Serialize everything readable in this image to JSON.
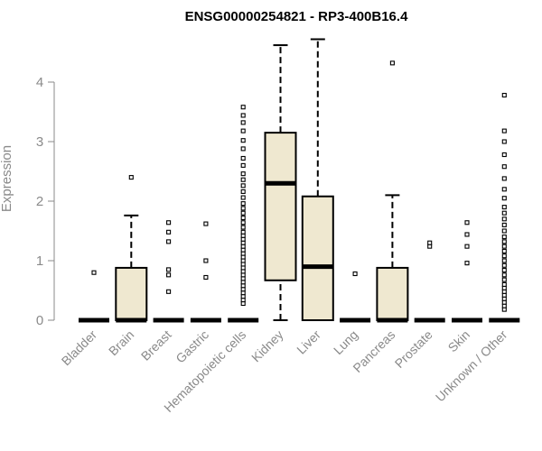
{
  "chart_data": {
    "type": "boxplot",
    "title": "ENSG00000254821 - RP3-400B16.4",
    "xlabel": "",
    "ylabel": "Expression",
    "ylim": [
      0,
      4.8
    ],
    "yticks": [
      0,
      1,
      2,
      3,
      4
    ],
    "categories": [
      "Bladder",
      "Brain",
      "Breast",
      "Gastric",
      "Hematopoietic cells",
      "Kidney",
      "Liver",
      "Lung",
      "Pancreas",
      "Prostate",
      "Skin",
      "Unknown / Other"
    ],
    "box_fill": "#efe8d0",
    "boxes": [
      {
        "min": 0,
        "q1": 0,
        "median": 0,
        "q3": 0,
        "max": 0,
        "outliers": [
          0.8
        ]
      },
      {
        "min": 0,
        "q1": 0,
        "median": 0,
        "q3": 0.88,
        "max": 1.76,
        "outliers": [
          2.4
        ]
      },
      {
        "min": 0,
        "q1": 0,
        "median": 0,
        "q3": 0,
        "max": 0,
        "outliers": [
          0.48,
          0.76,
          0.85,
          1.32,
          1.48,
          1.64
        ]
      },
      {
        "min": 0,
        "q1": 0,
        "median": 0,
        "q3": 0,
        "max": 0,
        "outliers": [
          0.72,
          1.0,
          1.62
        ]
      },
      {
        "min": 0,
        "q1": 0,
        "median": 0,
        "q3": 0,
        "max": 0,
        "outliers": [
          0.28,
          0.34,
          0.4,
          0.46,
          0.52,
          0.58,
          0.64,
          0.7,
          0.76,
          0.82,
          0.88,
          0.94,
          1.0,
          1.06,
          1.12,
          1.18,
          1.24,
          1.3,
          1.36,
          1.42,
          1.48,
          1.56,
          1.64,
          1.72,
          1.8,
          1.88,
          1.96,
          2.06,
          2.16,
          2.26,
          2.36,
          2.46,
          2.6,
          2.72,
          2.88,
          3.02,
          3.18,
          3.32,
          3.44,
          3.58
        ]
      },
      {
        "min": 0,
        "q1": 0.67,
        "median": 2.3,
        "q3": 3.15,
        "max": 4.62,
        "outliers": []
      },
      {
        "min": 0,
        "q1": 0,
        "median": 0.9,
        "q3": 2.08,
        "max": 4.72,
        "outliers": []
      },
      {
        "min": 0,
        "q1": 0,
        "median": 0,
        "q3": 0,
        "max": 0,
        "outliers": [
          0.78
        ]
      },
      {
        "min": 0,
        "q1": 0,
        "median": 0,
        "q3": 0.88,
        "max": 2.1,
        "outliers": [
          4.32
        ]
      },
      {
        "min": 0,
        "q1": 0,
        "median": 0,
        "q3": 0,
        "max": 0,
        "outliers": [
          1.24,
          1.3
        ]
      },
      {
        "min": 0,
        "q1": 0,
        "median": 0,
        "q3": 0,
        "max": 0,
        "outliers": [
          0.96,
          1.24,
          1.44,
          1.64
        ]
      },
      {
        "min": 0,
        "q1": 0,
        "median": 0,
        "q3": 0,
        "max": 0,
        "outliers": [
          0.18,
          0.24,
          0.3,
          0.36,
          0.42,
          0.48,
          0.54,
          0.6,
          0.68,
          0.76,
          0.84,
          0.92,
          1.0,
          1.08,
          1.16,
          1.24,
          1.32,
          1.4,
          1.5,
          1.6,
          1.7,
          1.8,
          1.9,
          2.05,
          2.2,
          2.38,
          2.58,
          2.78,
          3.0,
          3.18,
          3.78
        ]
      }
    ]
  }
}
